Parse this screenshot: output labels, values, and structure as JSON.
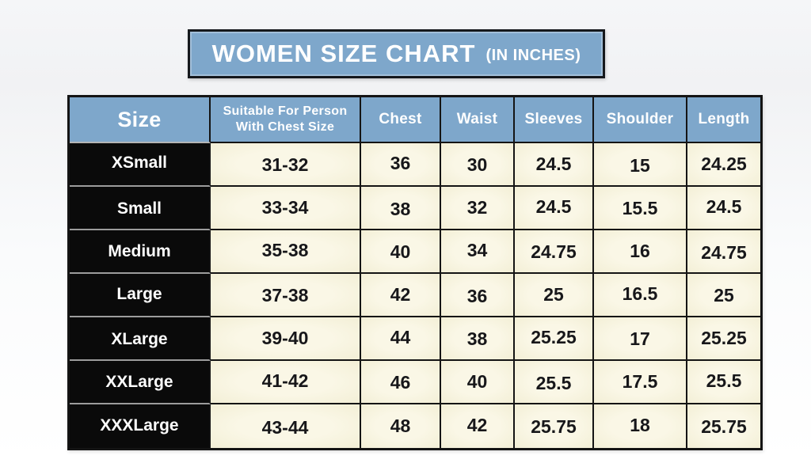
{
  "chart_data": {
    "type": "table",
    "title": "WOMEN SIZE CHART",
    "title_units": "(IN INCHES)",
    "units": "inches",
    "headers": {
      "size": "Size",
      "suitable_line1": "Suitable For Person",
      "suitable_line2": "With Chest Size",
      "chest": "Chest",
      "waist": "Waist",
      "sleeves": "Sleeves",
      "shoulder": "Shoulder",
      "length": "Length"
    },
    "column_order": [
      "size",
      "suitable",
      "chest",
      "waist",
      "sleeves",
      "shoulder",
      "length"
    ],
    "rows": [
      {
        "size": "XSmall",
        "suitable": "31-32",
        "chest": "36",
        "waist": "30",
        "sleeves": "24.5",
        "shoulder": "15",
        "length": "24.25"
      },
      {
        "size": "Small",
        "suitable": "33-34",
        "chest": "38",
        "waist": "32",
        "sleeves": "24.5",
        "shoulder": "15.5",
        "length": "24.5"
      },
      {
        "size": "Medium",
        "suitable": "35-38",
        "chest": "40",
        "waist": "34",
        "sleeves": "24.75",
        "shoulder": "16",
        "length": "24.75"
      },
      {
        "size": "Large",
        "suitable": "37-38",
        "chest": "42",
        "waist": "36",
        "sleeves": "25",
        "shoulder": "16.5",
        "length": "25"
      },
      {
        "size": "XLarge",
        "suitable": "39-40",
        "chest": "44",
        "waist": "38",
        "sleeves": "25.25",
        "shoulder": "17",
        "length": "25.25"
      },
      {
        "size": "XXLarge",
        "suitable": "41-42",
        "chest": "46",
        "waist": "40",
        "sleeves": "25.5",
        "shoulder": "17.5",
        "length": "25.5"
      },
      {
        "size": "XXXLarge",
        "suitable": "43-44",
        "chest": "48",
        "waist": "42",
        "sleeves": "25.75",
        "shoulder": "18",
        "length": "25.75"
      }
    ]
  },
  "colors": {
    "header_blue": "#7EA7CB",
    "cell_cream": "#F6F2DA",
    "size_cell_black": "#0A0A0A",
    "border_dark": "#141414",
    "title_text": "#FFFFFF"
  }
}
